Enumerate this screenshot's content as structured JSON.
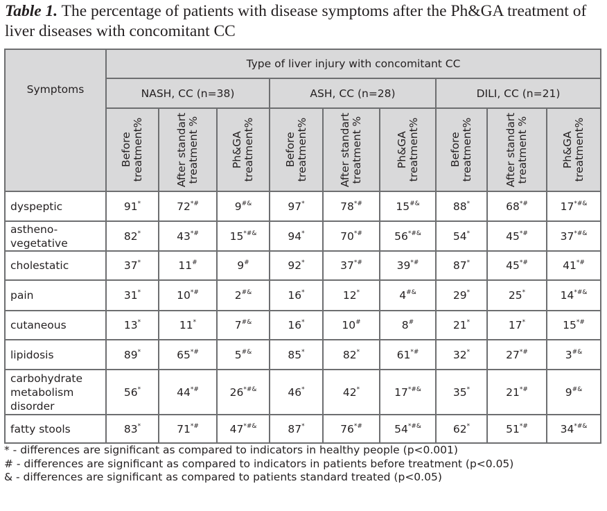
{
  "title": {
    "label": "Table 1.",
    "text": "The percentage of patients with disease symptoms after the Ph&GA treatment of liver diseases with concomitant CC"
  },
  "table": {
    "symptoms_header": "Symptoms",
    "type_header": "Type of liver injury with concomitant CC",
    "groups": [
      "NASH, CC (n=38)",
      "ASH, CC (n=28)",
      "DILI, CC (n=21)"
    ],
    "subcolumns": [
      "Before treatment%",
      "After standart treatment %",
      "Ph&GA treatment%"
    ],
    "rows": [
      {
        "symptom": "dyspeptic",
        "cells": [
          [
            "91",
            "*"
          ],
          [
            "72",
            "*#"
          ],
          [
            "9",
            "#&"
          ],
          [
            "97",
            "*"
          ],
          [
            "78",
            "*#"
          ],
          [
            "15",
            "#&"
          ],
          [
            "88",
            "*"
          ],
          [
            "68",
            "*#"
          ],
          [
            "17",
            "*#&"
          ]
        ]
      },
      {
        "symptom": "astheno-vegetative",
        "cells": [
          [
            "82",
            "*"
          ],
          [
            "43",
            "*#"
          ],
          [
            "15",
            "*#&"
          ],
          [
            "94",
            "*"
          ],
          [
            "70",
            "*#"
          ],
          [
            "56",
            "*#&"
          ],
          [
            "54",
            "*"
          ],
          [
            "45",
            "*#"
          ],
          [
            "37",
            "*#&"
          ]
        ]
      },
      {
        "symptom": "cholestatic",
        "cells": [
          [
            "37",
            "*"
          ],
          [
            "11",
            "#"
          ],
          [
            "9",
            "#"
          ],
          [
            "92",
            "*"
          ],
          [
            "37",
            "*#"
          ],
          [
            "39",
            "*#"
          ],
          [
            "87",
            "*"
          ],
          [
            "45",
            "*#"
          ],
          [
            "41",
            "*#"
          ]
        ]
      },
      {
        "symptom": "pain",
        "cells": [
          [
            "31",
            "*"
          ],
          [
            "10",
            "*#"
          ],
          [
            "2",
            "#&"
          ],
          [
            "16",
            "*"
          ],
          [
            "12",
            "*"
          ],
          [
            "4",
            "#&"
          ],
          [
            "29",
            "*"
          ],
          [
            "25",
            "*"
          ],
          [
            "14",
            "*#&"
          ]
        ]
      },
      {
        "symptom": "cutaneous",
        "cells": [
          [
            "13",
            "*"
          ],
          [
            "11",
            "*"
          ],
          [
            "7",
            "#&"
          ],
          [
            "16",
            "*"
          ],
          [
            "10",
            "#"
          ],
          [
            "8",
            "#"
          ],
          [
            "21",
            "*"
          ],
          [
            "17",
            "*"
          ],
          [
            "15",
            "*#"
          ]
        ]
      },
      {
        "symptom": "lipidosis",
        "cells": [
          [
            "89",
            "*"
          ],
          [
            "65",
            "*#"
          ],
          [
            "5",
            "#&"
          ],
          [
            "85",
            "*"
          ],
          [
            "82",
            "*"
          ],
          [
            "61",
            "*#"
          ],
          [
            "32",
            "*"
          ],
          [
            "27",
            "*#"
          ],
          [
            "3",
            "#&"
          ]
        ]
      },
      {
        "symptom": "carbohydrate metabolism disorder",
        "cells": [
          [
            "56",
            "*"
          ],
          [
            "44",
            "*#"
          ],
          [
            "26",
            "*#&"
          ],
          [
            "46",
            "*"
          ],
          [
            "42",
            "*"
          ],
          [
            "17",
            "*#&"
          ],
          [
            "35",
            "*"
          ],
          [
            "21",
            "*#"
          ],
          [
            "9",
            "#&"
          ]
        ]
      },
      {
        "symptom": "fatty stools",
        "cells": [
          [
            "83",
            "*"
          ],
          [
            "71",
            "*#"
          ],
          [
            "47",
            "*#&"
          ],
          [
            "87",
            "*"
          ],
          [
            "76",
            "*#"
          ],
          [
            "54",
            "*#&"
          ],
          [
            "62",
            "*"
          ],
          [
            "51",
            "*#"
          ],
          [
            "34",
            "*#&"
          ]
        ]
      }
    ]
  },
  "notes": [
    "* - differences are significant as compared to indicators in healthy people (p<0.001)",
    "# - differences are significant as compared to indicators in patients before treatment (p<0.05)",
    "& - differences are significant as compared to patients standard treated (p<0.05)"
  ]
}
